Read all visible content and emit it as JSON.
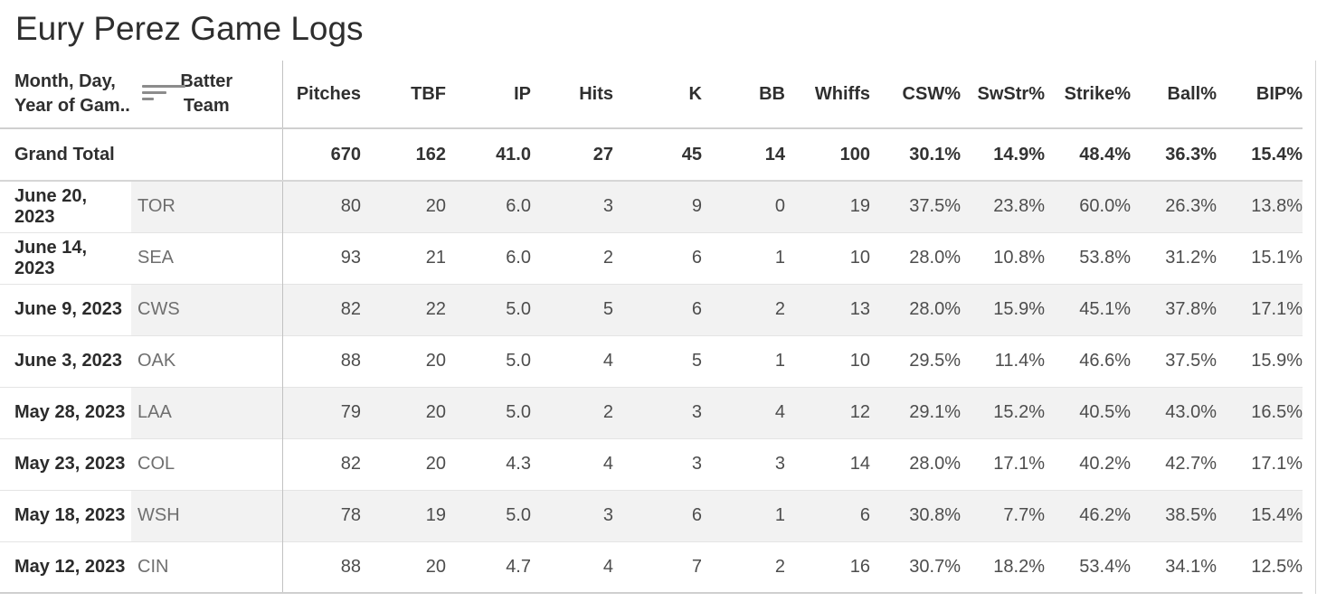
{
  "title": "Eury Perez Game Logs",
  "header": {
    "date_field": {
      "line1": "Month, Day,",
      "line2": "Year of Gam..",
      "sort_icon": "sort-descending-icon"
    },
    "team_field": {
      "line1": "Batter",
      "line2": "Team"
    }
  },
  "chart_data": {
    "type": "table",
    "title": "Eury Perez Game Logs",
    "columns": [
      "Month, Day, Year of Gam..",
      "Batter Team",
      "Pitches",
      "TBF",
      "IP",
      "Hits",
      "K",
      "BB",
      "Whiffs",
      "CSW%",
      "SwStr%",
      "Strike%",
      "Ball%",
      "BIP%"
    ],
    "metric_columns": [
      "Pitches",
      "TBF",
      "IP",
      "Hits",
      "K",
      "BB",
      "Whiffs",
      "CSW%",
      "SwStr%",
      "Strike%",
      "Ball%",
      "BIP%"
    ],
    "grand_total": {
      "label": "Grand Total",
      "team": "",
      "values": [
        "670",
        "162",
        "41.0",
        "27",
        "45",
        "14",
        "100",
        "30.1%",
        "14.9%",
        "48.4%",
        "36.3%",
        "15.4%"
      ]
    },
    "rows": [
      {
        "date": "June 20, 2023",
        "team": "TOR",
        "values": [
          "80",
          "20",
          "6.0",
          "3",
          "9",
          "0",
          "19",
          "37.5%",
          "23.8%",
          "60.0%",
          "26.3%",
          "13.8%"
        ]
      },
      {
        "date": "June 14, 2023",
        "team": "SEA",
        "values": [
          "93",
          "21",
          "6.0",
          "2",
          "6",
          "1",
          "10",
          "28.0%",
          "10.8%",
          "53.8%",
          "31.2%",
          "15.1%"
        ]
      },
      {
        "date": "June 9, 2023",
        "team": "CWS",
        "values": [
          "82",
          "22",
          "5.0",
          "5",
          "6",
          "2",
          "13",
          "28.0%",
          "15.9%",
          "45.1%",
          "37.8%",
          "17.1%"
        ]
      },
      {
        "date": "June 3, 2023",
        "team": "OAK",
        "values": [
          "88",
          "20",
          "5.0",
          "4",
          "5",
          "1",
          "10",
          "29.5%",
          "11.4%",
          "46.6%",
          "37.5%",
          "15.9%"
        ]
      },
      {
        "date": "May 28, 2023",
        "team": "LAA",
        "values": [
          "79",
          "20",
          "5.0",
          "2",
          "3",
          "4",
          "12",
          "29.1%",
          "15.2%",
          "40.5%",
          "43.0%",
          "16.5%"
        ]
      },
      {
        "date": "May 23, 2023",
        "team": "COL",
        "values": [
          "82",
          "20",
          "4.3",
          "4",
          "3",
          "3",
          "14",
          "28.0%",
          "17.1%",
          "40.2%",
          "42.7%",
          "17.1%"
        ]
      },
      {
        "date": "May 18, 2023",
        "team": "WSH",
        "values": [
          "78",
          "19",
          "5.0",
          "3",
          "6",
          "1",
          "6",
          "30.8%",
          "7.7%",
          "46.2%",
          "38.5%",
          "15.4%"
        ]
      },
      {
        "date": "May 12, 2023",
        "team": "CIN",
        "values": [
          "88",
          "20",
          "4.7",
          "4",
          "7",
          "2",
          "16",
          "30.7%",
          "18.2%",
          "53.4%",
          "34.1%",
          "12.5%"
        ]
      }
    ]
  },
  "colors": {
    "banding": "#f2f2f2",
    "row_border": "#e4e4e4",
    "strong_border": "#cfcfcf",
    "column_divider": "#c2c2c2",
    "title_text": "#2e2e2e",
    "header_text": "#2f2f2f",
    "date_text": "#2b2b2b",
    "team_text": "#6f6f6f",
    "value_text": "#4d4d4d",
    "sort_icon": "#8c8c8c"
  }
}
